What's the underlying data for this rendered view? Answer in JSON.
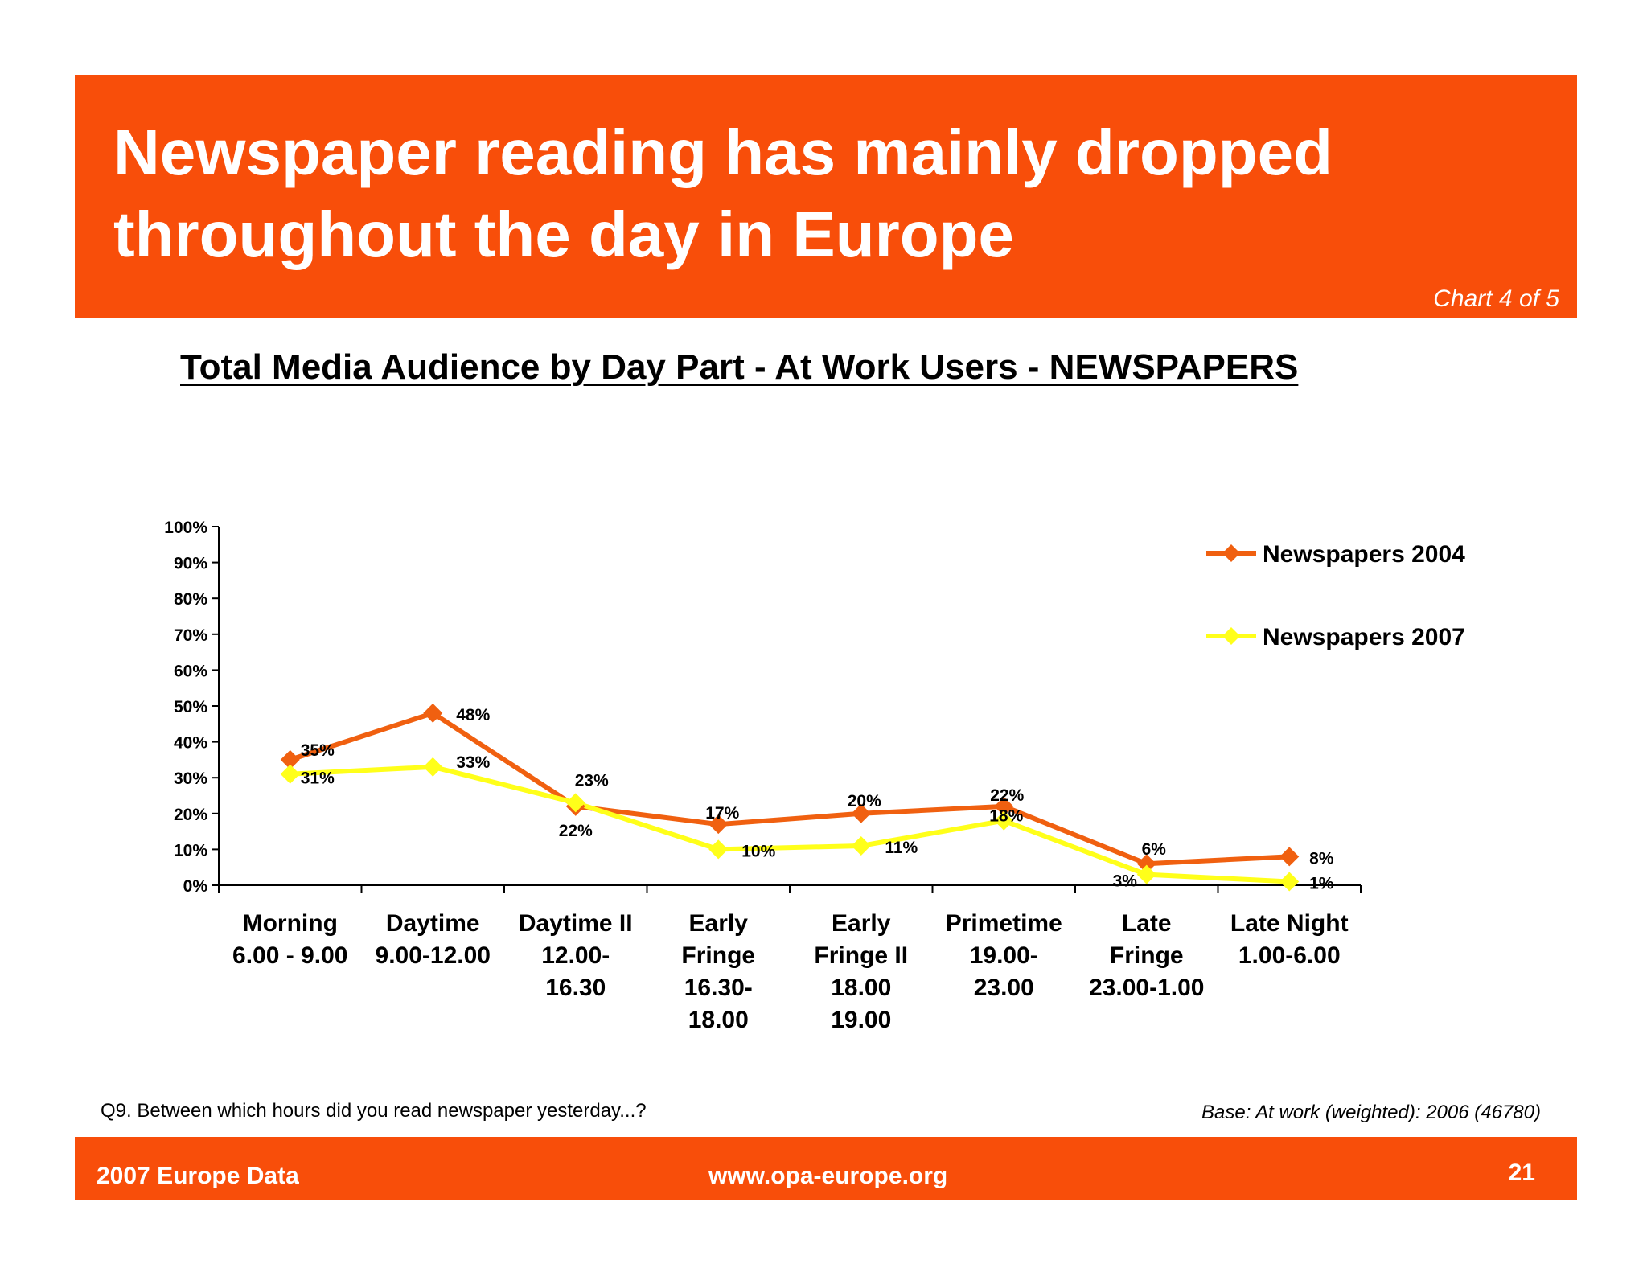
{
  "header": {
    "title": "Newspaper reading has mainly dropped throughout the day in Europe",
    "chart_count": "Chart 4 of 5"
  },
  "chart_heading": "Total Media Audience by Day Part - At Work Users - NEWSPAPERS",
  "colors": {
    "brand_orange": "#f84e0a",
    "series_2004": "#f06010",
    "series_2007": "#ffff1a"
  },
  "chart_data": {
    "type": "line",
    "title": "Total Media Audience by Day Part - At Work Users - NEWSPAPERS",
    "xlabel": "",
    "ylabel": "",
    "ylim": [
      0,
      100
    ],
    "y_ticks": [
      "0%",
      "10%",
      "20%",
      "30%",
      "40%",
      "50%",
      "60%",
      "70%",
      "80%",
      "90%",
      "100%"
    ],
    "categories": [
      [
        "Morning",
        "6.00 - 9.00"
      ],
      [
        "Daytime",
        "9.00-12.00"
      ],
      [
        "Daytime II",
        "12.00-",
        "16.30"
      ],
      [
        "Early",
        "Fringe",
        "16.30-",
        "18.00"
      ],
      [
        "Early",
        "Fringe II",
        "18.00",
        "19.00"
      ],
      [
        "Primetime",
        "19.00-",
        "23.00"
      ],
      [
        "Late",
        "Fringe",
        "23.00-1.00"
      ],
      [
        "Late Night",
        "1.00-6.00"
      ]
    ],
    "series": [
      {
        "name": "Newspapers 2004",
        "values": [
          35,
          48,
          22,
          17,
          20,
          22,
          6,
          8
        ],
        "labels": [
          "35%",
          "48%",
          "22%",
          "17%",
          "20%",
          "22%",
          "6%",
          "8%"
        ]
      },
      {
        "name": "Newspapers 2007",
        "values": [
          31,
          33,
          23,
          10,
          11,
          18,
          3,
          1
        ],
        "labels": [
          "31%",
          "33%",
          "23%",
          "10%",
          "11%",
          "18%",
          "3%",
          "1%"
        ]
      }
    ],
    "legend": "top-right",
    "grid": false
  },
  "footnotes": {
    "question": "Q9. Between which hours did you read newspaper yesterday...?",
    "base": "Base: At work (weighted): 2006 (46780)"
  },
  "footer": {
    "left": "2007 Europe Data",
    "center": "www.opa-europe.org",
    "page_number": "21"
  }
}
